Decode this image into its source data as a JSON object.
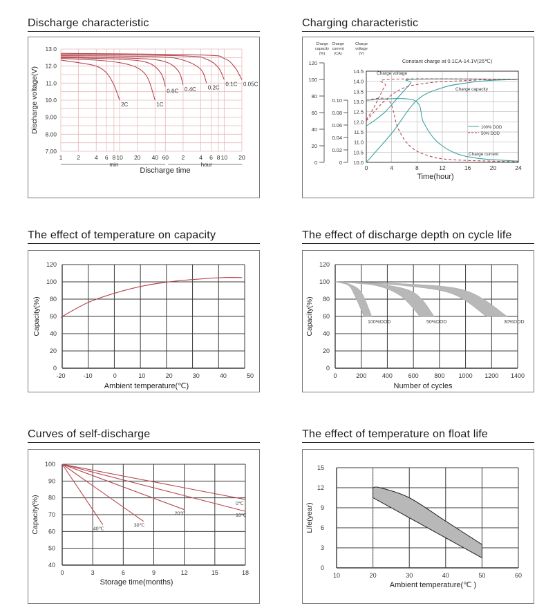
{
  "colors": {
    "curve": "#b5474f",
    "teal": "#3aa0a0",
    "grid": "#3a3a3a",
    "finegrid": "#e6b9b9",
    "band": "#b8b8b8"
  },
  "panels": [
    {
      "id": "discharge",
      "title": "Discharge characteristic",
      "chart_data": {
        "type": "line",
        "title": "Discharge characteristic",
        "xlabel": "Discharge time",
        "ylabel": "Discharge voltage(V)",
        "x_ticks": [
          "1",
          "2",
          "4",
          "6",
          "8",
          "10",
          "20",
          "40",
          "60",
          "2",
          "4",
          "6",
          "8",
          "10",
          "20"
        ],
        "y_ticks": [
          "13.0",
          "12.0",
          "11.0",
          "10.0",
          "9.00",
          "8.00",
          "7.00"
        ],
        "ylim": [
          7.0,
          13.0
        ],
        "unit_labels": [
          "min",
          "hour"
        ],
        "series": [
          {
            "name": "2C",
            "x_minutes": [
              1,
              2,
              4,
              6,
              8,
              10
            ],
            "y": [
              12.35,
              12.2,
              12.0,
              11.6,
              10.9,
              10.0
            ]
          },
          {
            "name": "1C",
            "x_minutes": [
              1,
              4,
              10,
              20,
              30,
              40
            ],
            "y": [
              12.45,
              12.35,
              12.2,
              11.9,
              11.3,
              10.0
            ]
          },
          {
            "name": "0.6C",
            "x_minutes": [
              1,
              10,
              30,
              50,
              60
            ],
            "y": [
              12.5,
              12.4,
              12.2,
              11.6,
              10.8
            ]
          },
          {
            "name": "0.4C",
            "x_minutes": [
              1,
              20,
              60,
              100,
              120
            ],
            "y": [
              12.55,
              12.45,
              12.25,
              11.7,
              10.9
            ]
          },
          {
            "name": "0.2C",
            "x_minutes": [
              1,
              40,
              120,
              240,
              300
            ],
            "y": [
              12.62,
              12.55,
              12.35,
              11.8,
              11.0
            ]
          },
          {
            "name": "0.1C",
            "x_minutes": [
              1,
              120,
              300,
              480,
              600
            ],
            "y": [
              12.7,
              12.6,
              12.4,
              11.9,
              11.2
            ]
          },
          {
            "name": "0.05C",
            "x_minutes": [
              1,
              240,
              600,
              900,
              1200
            ],
            "y": [
              12.75,
              12.65,
              12.45,
              11.95,
              11.2
            ]
          }
        ]
      }
    },
    {
      "id": "charging",
      "title": "Charging characteristic",
      "chart_data": {
        "type": "line",
        "title": "Charging characteristic",
        "annotation": "Constant charge at 0.1CA-14.1V(25℃)",
        "xlabel": "Time(hour)",
        "x_ticks": [
          "0",
          "4",
          "8",
          "12",
          "16",
          "20",
          "24"
        ],
        "xlim": [
          0,
          24
        ],
        "axis_headers": [
          "Charge capacity (%)",
          "Charge current (CA)",
          "Charge voltage (V)"
        ],
        "capacity_ticks": [
          "120",
          "100",
          "80",
          "60",
          "40",
          "20",
          "0"
        ],
        "current_ticks": [
          "0.10",
          "0.08",
          "0.06",
          "0.04",
          "0.02",
          "0"
        ],
        "voltage_ticks": [
          "14.5",
          "14.0",
          "13.5",
          "13.0",
          "12.5",
          "12.0",
          "11.5",
          "11.0",
          "10.5",
          "10.0"
        ],
        "legend": [
          "100% DOD",
          "50% DOD"
        ],
        "curve_labels": [
          "Charge voltage",
          "Charge capacity",
          "Charge current"
        ],
        "series": [
          {
            "name": "100% DOD",
            "metric": "voltage",
            "x": [
              0,
              1,
              3,
              5,
              7,
              7.5,
              24
            ],
            "y": [
              11.8,
              12.0,
              12.5,
              13.2,
              13.9,
              14.1,
              14.1
            ]
          },
          {
            "name": "50% DOD",
            "metric": "voltage",
            "x": [
              0,
              1,
              2,
              3,
              4,
              24
            ],
            "y": [
              12.1,
              12.6,
              13.2,
              13.8,
              14.1,
              14.1
            ]
          },
          {
            "name": "100% DOD",
            "metric": "capacity",
            "x": [
              0,
              4,
              8,
              12,
              16,
              20,
              24
            ],
            "y": [
              0,
              35,
              75,
              90,
              96,
              99,
              100
            ]
          },
          {
            "name": "50% DOD",
            "metric": "capacity",
            "x": [
              0,
              3,
              6,
              10,
              14,
              20,
              24
            ],
            "y": [
              50,
              75,
              90,
              96,
              98,
              100,
              100
            ]
          },
          {
            "name": "100% DOD",
            "metric": "current",
            "x": [
              0,
              7.5,
              9,
              11,
              14,
              18,
              24
            ],
            "y": [
              0.1,
              0.1,
              0.065,
              0.035,
              0.015,
              0.006,
              0.002
            ]
          },
          {
            "name": "50% DOD",
            "metric": "current",
            "x": [
              0,
              3.5,
              5,
              7,
              10,
              14,
              24
            ],
            "y": [
              0.1,
              0.1,
              0.055,
              0.025,
              0.01,
              0.004,
              0.001
            ]
          }
        ]
      }
    },
    {
      "id": "temp_capacity",
      "title": "The effect of temperature on capacity",
      "chart_data": {
        "type": "line",
        "title": "The effect of temperature on capacity",
        "xlabel": "Ambient temperature(℃)",
        "ylabel": "Capacity(%)",
        "xlim": [
          -20,
          50
        ],
        "ylim": [
          0,
          120
        ],
        "x_ticks": [
          "-20",
          "-10",
          "0",
          "10",
          "20",
          "30",
          "40",
          "50"
        ],
        "y_ticks": [
          "0",
          "20",
          "40",
          "60",
          "80",
          "100",
          "120"
        ],
        "series": [
          {
            "name": "",
            "x": [
              -20,
              -10,
              0,
              10,
              20,
              30,
              40,
              47
            ],
            "y": [
              59,
              76,
              87,
              95,
              100,
              103,
              105,
              105
            ]
          }
        ]
      }
    },
    {
      "id": "dod_cycle",
      "title": "The effect of discharge depth on cycle life",
      "chart_data": {
        "type": "area",
        "title": "The effect of discharge depth on cycle life",
        "xlabel": "Number of cycles",
        "ylabel": "Capacity(%)",
        "xlim": [
          0,
          1400
        ],
        "ylim": [
          0,
          120
        ],
        "x_ticks": [
          "0",
          "200",
          "400",
          "600",
          "800",
          "1000",
          "1200",
          "1400"
        ],
        "y_ticks": [
          "0",
          "20",
          "40",
          "60",
          "80",
          "100",
          "120"
        ],
        "bands": [
          {
            "name": "100%DOD",
            "upper": {
              "x": [
                0,
                100,
                200,
                280
              ],
              "y": [
                100,
                98,
                88,
                60
              ]
            },
            "lower": {
              "x": [
                0,
                100,
                150,
                220
              ],
              "y": [
                100,
                96,
                84,
                60
              ]
            }
          },
          {
            "name": "50%DOD",
            "upper": {
              "x": [
                0,
                300,
                600,
                760
              ],
              "y": [
                100,
                98,
                88,
                60
              ]
            },
            "lower": {
              "x": [
                0,
                300,
                500,
                650
              ],
              "y": [
                100,
                96,
                84,
                60
              ]
            }
          },
          {
            "name": "30%DOD",
            "upper": {
              "x": [
                0,
                500,
                1000,
                1320
              ],
              "y": [
                100,
                98,
                90,
                60
              ]
            },
            "lower": {
              "x": [
                0,
                500,
                900,
                1160
              ],
              "y": [
                100,
                96,
                86,
                60
              ]
            }
          }
        ],
        "band_labels": [
          "100%DOD",
          "50%DOD",
          "30%DOD"
        ]
      }
    },
    {
      "id": "self_discharge",
      "title": "Curves of self-discharge",
      "chart_data": {
        "type": "line",
        "title": "Curves of self-discharge",
        "xlabel": "Storage time(months)",
        "ylabel": "Capacity(%)",
        "xlim": [
          0,
          18
        ],
        "ylim": [
          40,
          100
        ],
        "x_ticks": [
          "0",
          "3",
          "6",
          "9",
          "12",
          "15",
          "18"
        ],
        "y_ticks": [
          "40",
          "50",
          "60",
          "70",
          "80",
          "90",
          "100"
        ],
        "series": [
          {
            "name": "0℃",
            "x": [
              0,
              18
            ],
            "y": [
              100,
              79
            ]
          },
          {
            "name": "10℃",
            "x": [
              0,
              18
            ],
            "y": [
              100,
              72
            ]
          },
          {
            "name": "20℃",
            "x": [
              0,
              12
            ],
            "y": [
              100,
              73
            ]
          },
          {
            "name": "30℃",
            "x": [
              0,
              8
            ],
            "y": [
              100,
              66
            ]
          },
          {
            "name": "40℃",
            "x": [
              0,
              4
            ],
            "y": [
              100,
              64
            ]
          }
        ]
      }
    },
    {
      "id": "float_life",
      "title": "The effect of temperature on float  life",
      "chart_data": {
        "type": "area",
        "title": "The effect of temperature on float  life",
        "xlabel": "Ambient temperature(℃ )",
        "ylabel": "Life(year)",
        "xlim": [
          10,
          60
        ],
        "ylim": [
          0,
          15
        ],
        "x_ticks": [
          "10",
          "20",
          "30",
          "40",
          "50",
          "60"
        ],
        "y_ticks": [
          "0",
          "3",
          "6",
          "9",
          "12",
          "15"
        ],
        "band": {
          "upper": {
            "x": [
              20,
              22,
              30,
              40,
              50
            ],
            "y": [
              12,
              12,
              10.5,
              7.0,
              3.5
            ]
          },
          "lower": {
            "x": [
              20,
              30,
              40,
              50
            ],
            "y": [
              10.5,
              7.5,
              4.5,
              1.5
            ]
          }
        }
      }
    }
  ]
}
